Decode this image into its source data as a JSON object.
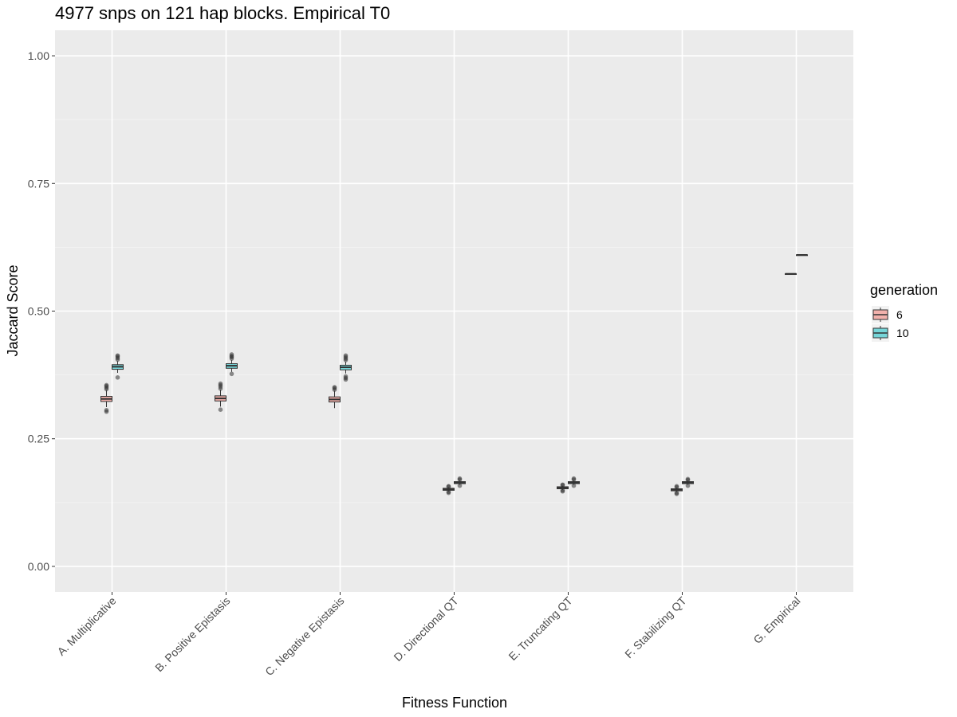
{
  "chart_data": {
    "type": "boxplot",
    "title": "4977 snps on 121 hap blocks. Empirical T0",
    "xlabel": "Fitness Function",
    "ylabel": "Jaccard Score",
    "ylim": [
      -0.05,
      1.05
    ],
    "yticks": [
      0.0,
      0.25,
      0.5,
      0.75,
      1.0
    ],
    "ytick_labels": [
      "0.00",
      "0.25",
      "0.50",
      "0.75",
      "1.00"
    ],
    "categories": [
      "A. Multiplicative",
      "B. Positive Epistasis",
      "C. Negative Epistasis",
      "D. Directional QT",
      "E. Truncating QT",
      "F. Stabilizing QT",
      "G. Empirical"
    ],
    "grid": true,
    "legend": {
      "title": "generation",
      "position": "right"
    },
    "series": [
      {
        "name": "6",
        "color": "#F8766D",
        "boxes": [
          {
            "whisker_low": 0.312,
            "q1": 0.323,
            "median": 0.328,
            "q3": 0.333,
            "whisker_high": 0.345,
            "outliers": [
              0.303,
              0.306,
              0.347,
              0.35,
              0.353,
              0.355
            ]
          },
          {
            "whisker_low": 0.313,
            "q1": 0.324,
            "median": 0.329,
            "q3": 0.334,
            "whisker_high": 0.346,
            "outliers": [
              0.307,
              0.348,
              0.352,
              0.355,
              0.358
            ]
          },
          {
            "whisker_low": 0.31,
            "q1": 0.322,
            "median": 0.327,
            "q3": 0.332,
            "whisker_high": 0.344,
            "outliers": [
              0.346,
              0.349,
              0.351
            ]
          },
          {
            "whisker_low": 0.147,
            "q1": 0.149,
            "median": 0.151,
            "q3": 0.153,
            "whisker_high": 0.155,
            "outliers": [
              0.144,
              0.146,
              0.156,
              0.157
            ]
          },
          {
            "whisker_low": 0.15,
            "q1": 0.152,
            "median": 0.154,
            "q3": 0.156,
            "whisker_high": 0.158,
            "outliers": [
              0.147,
              0.149,
              0.159,
              0.16
            ]
          },
          {
            "whisker_low": 0.146,
            "q1": 0.148,
            "median": 0.15,
            "q3": 0.152,
            "whisker_high": 0.154,
            "outliers": [
              0.142,
              0.144,
              0.155,
              0.157
            ]
          },
          {
            "whisker_low": 0.573,
            "q1": 0.573,
            "median": 0.573,
            "q3": 0.573,
            "whisker_high": 0.573,
            "outliers": []
          }
        ]
      },
      {
        "name": "10",
        "color": "#00BFC4",
        "boxes": [
          {
            "whisker_low": 0.379,
            "q1": 0.386,
            "median": 0.391,
            "q3": 0.395,
            "whisker_high": 0.402,
            "outliers": [
              0.37,
              0.405,
              0.408,
              0.411,
              0.413
            ]
          },
          {
            "whisker_low": 0.381,
            "q1": 0.388,
            "median": 0.393,
            "q3": 0.397,
            "whisker_high": 0.404,
            "outliers": [
              0.377,
              0.407,
              0.41,
              0.412,
              0.415
            ]
          },
          {
            "whisker_low": 0.378,
            "q1": 0.385,
            "median": 0.39,
            "q3": 0.394,
            "whisker_high": 0.401,
            "outliers": [
              0.366,
              0.369,
              0.372,
              0.404,
              0.407,
              0.41,
              0.413
            ]
          },
          {
            "whisker_low": 0.16,
            "q1": 0.162,
            "median": 0.164,
            "q3": 0.166,
            "whisker_high": 0.168,
            "outliers": [
              0.158,
              0.17,
              0.172
            ]
          },
          {
            "whisker_low": 0.16,
            "q1": 0.162,
            "median": 0.164,
            "q3": 0.166,
            "whisker_high": 0.168,
            "outliers": [
              0.158,
              0.17,
              0.172
            ]
          },
          {
            "whisker_low": 0.16,
            "q1": 0.162,
            "median": 0.164,
            "q3": 0.166,
            "whisker_high": 0.168,
            "outliers": [
              0.158,
              0.169,
              0.171
            ]
          },
          {
            "whisker_low": 0.61,
            "q1": 0.61,
            "median": 0.61,
            "q3": 0.61,
            "whisker_high": 0.61,
            "outliers": []
          }
        ]
      }
    ]
  }
}
